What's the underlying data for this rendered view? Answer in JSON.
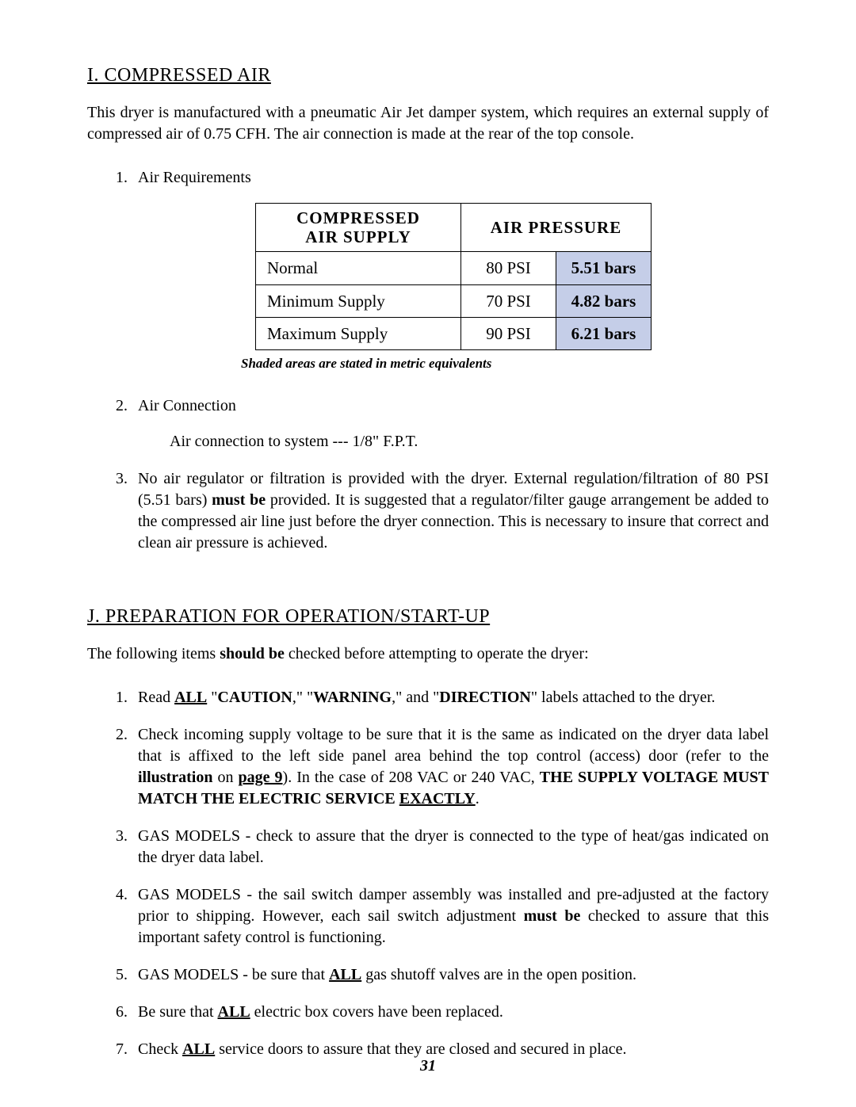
{
  "colors": {
    "page_bg": "#ffffff",
    "text": "#000000",
    "table_border": "#000000",
    "shaded_cell_bg": "#c5cee8"
  },
  "typography": {
    "body_font": "Times New Roman",
    "body_size_pt": 15,
    "heading_size_pt": 18,
    "table_header_font": "Bookman Old Style"
  },
  "sectionI": {
    "heading": "I.  COMPRESSED AIR",
    "intro": "This dryer is manufactured with a pneumatic Air Jet damper system, which requires an external supply of compressed air of 0.75 CFH.  The air connection is made at the rear of the top console.",
    "item1_label": "Air Requirements",
    "table": {
      "col_supply": "COMPRESSED AIR SUPPLY",
      "col_pressure": "AIR PRESSURE",
      "rows": [
        {
          "label": "Normal",
          "psi": "80 PSI",
          "bars": "5.51 bars"
        },
        {
          "label": "Minimum Supply",
          "psi": "70 PSI",
          "bars": "4.82 bars"
        },
        {
          "label": "Maximum Supply",
          "psi": "90 PSI",
          "bars": "6.21 bars"
        }
      ],
      "note": "Shaded areas are stated in metric equivalents"
    },
    "item2_label": "Air Connection",
    "item2_body": "Air connection to system --- 1/8\" F.P.T.",
    "item3": {
      "pre": "No air regulator or filtration is provided with the dryer.  External regulation/filtration of 80 PSI (5.51 bars) ",
      "must_be": "must be",
      "post": " provided.  It is suggested that a regulator/filter gauge arrangement be added to the compressed air line just before the dryer connection.  This is necessary to insure that correct and clean air pressure is achieved."
    }
  },
  "sectionJ": {
    "heading": "J.  PREPARATION FOR OPERATION/START-UP",
    "intro_pre": "The following items ",
    "intro_should_be": "should be",
    "intro_post": " checked before attempting to operate the dryer:",
    "item1": {
      "t0": "Read ",
      "all": "ALL",
      "t1": " \"",
      "caution": "CAUTION",
      "t2": ",\" \"",
      "warning": "WARNING",
      "t3": ",\" and \"",
      "direction": "DIRECTION",
      "t4": "\" labels attached to the dryer."
    },
    "item2": {
      "t0": "Check incoming supply voltage to be sure that it is the same as indicated on the dryer data label that is affixed to the left side panel area behind the top control (access) door (refer to the ",
      "illus": "illustration",
      "t1": " on ",
      "page9": "page 9",
      "t2": "). In the case of 208 VAC or 240 VAC, ",
      "match": "THE SUPPLY VOLTAGE MUST MATCH THE ELECTRIC SERVICE ",
      "exactly": "EXACTLY",
      "t3": "."
    },
    "item3": "GAS MODELS - check to assure that the dryer is connected to the type of heat/gas indicated on the dryer data label.",
    "item4": {
      "t0": "GAS MODELS - the sail switch damper assembly was installed and pre-adjusted at the factory prior to shipping.  However, each sail switch adjustment ",
      "must_be": "must be",
      "t1": " checked to assure that this important safety control is functioning."
    },
    "item5": {
      "t0": "GAS MODELS - be sure that ",
      "all": "ALL",
      "t1": " gas shutoff valves are in the open position."
    },
    "item6": {
      "t0": "Be sure that ",
      "all": "ALL",
      "t1": " electric box covers have been replaced."
    },
    "item7": {
      "t0": "Check ",
      "all": "ALL",
      "t1": " service doors to assure that they are closed and secured in place."
    }
  },
  "page_number": "31"
}
